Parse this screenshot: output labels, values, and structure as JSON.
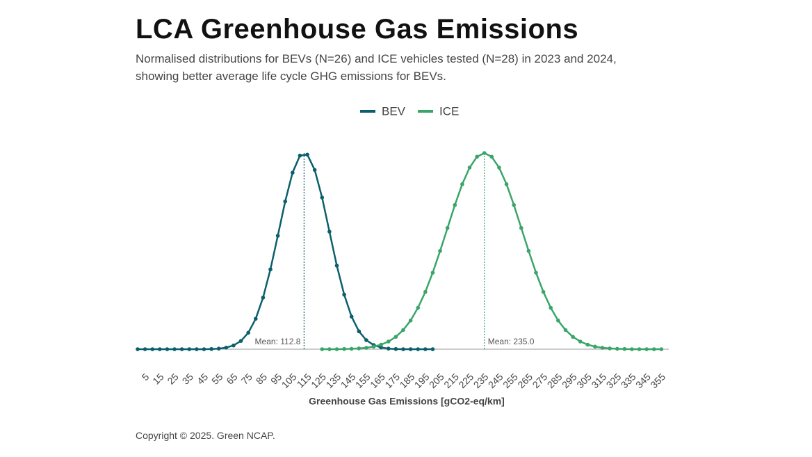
{
  "chart_data": {
    "type": "line",
    "title": "LCA Greenhouse Gas Emissions",
    "subtitle": "Normalised distributions for BEVs (N=26) and ICE vehicles tested (N=28) in 2023 and 2024, showing better average life cycle GHG emissions for BEVs.",
    "x_label": "Greenhouse Gas Emissions [gCO2-eq/km]",
    "footer": "Copyright © 2025. Green NCAP.",
    "x": [
      0,
      5,
      10,
      15,
      20,
      25,
      30,
      35,
      40,
      45,
      50,
      55,
      60,
      65,
      70,
      75,
      80,
      85,
      90,
      95,
      100,
      105,
      110,
      115,
      120,
      125,
      130,
      135,
      140,
      145,
      150,
      155,
      160,
      165,
      170,
      175,
      180,
      185,
      190,
      195,
      200,
      205,
      210,
      215,
      220,
      225,
      230,
      235,
      240,
      245,
      250,
      255,
      260,
      265,
      270,
      275,
      280,
      285,
      290,
      295,
      300,
      305,
      310,
      315,
      320,
      325,
      330,
      335,
      340,
      345,
      350,
      355
    ],
    "series": [
      {
        "name": "BEV",
        "color": "#0b5f6b",
        "values": [
          0,
          0,
          0,
          0,
          0,
          0,
          0,
          0,
          0,
          0,
          0.001,
          0.003,
          0.008,
          0.019,
          0.042,
          0.084,
          0.155,
          0.263,
          0.407,
          0.578,
          0.753,
          0.9,
          0.987,
          0.992,
          0.914,
          0.773,
          0.599,
          0.426,
          0.278,
          0.166,
          0.091,
          0.046,
          0.021,
          0.009,
          0.003,
          0.001,
          0,
          0,
          0,
          0,
          0,
          null,
          null,
          null,
          null,
          null,
          null,
          null,
          null,
          null,
          null,
          null,
          null,
          null,
          null,
          null,
          null,
          null,
          null,
          null,
          null,
          null,
          null,
          null,
          null,
          null,
          null,
          null,
          null,
          null,
          null,
          null
        ]
      },
      {
        "name": "ICE",
        "color": "#3aa56a",
        "values": [
          null,
          null,
          null,
          null,
          null,
          null,
          null,
          null,
          null,
          null,
          null,
          null,
          null,
          null,
          null,
          null,
          null,
          null,
          null,
          null,
          null,
          null,
          null,
          null,
          null,
          0,
          0,
          0,
          0.001,
          0.002,
          0.004,
          0.007,
          0.013,
          0.023,
          0.039,
          0.063,
          0.098,
          0.146,
          0.211,
          0.292,
          0.39,
          0.501,
          0.618,
          0.735,
          0.841,
          0.926,
          0.981,
          1,
          0.981,
          0.926,
          0.841,
          0.735,
          0.618,
          0.501,
          0.39,
          0.292,
          0.211,
          0.146,
          0.098,
          0.063,
          0.039,
          0.023,
          0.013,
          0.007,
          0.004,
          0.002,
          0.001,
          0,
          0,
          0,
          0,
          0
        ]
      }
    ],
    "annotations": [
      {
        "x": 112.8,
        "text": "Mean: 112.8",
        "color": "#0b5f6b"
      },
      {
        "x": 235.0,
        "text": "Mean: 235.0",
        "color": "#3aa56a"
      }
    ],
    "xlim": [
      0,
      360
    ],
    "ylim": [
      0,
      1
    ],
    "xticks": [
      5,
      15,
      25,
      35,
      45,
      55,
      65,
      75,
      85,
      95,
      105,
      115,
      125,
      135,
      145,
      155,
      165,
      175,
      185,
      195,
      205,
      215,
      225,
      235,
      245,
      255,
      265,
      275,
      285,
      295,
      305,
      315,
      325,
      335,
      345,
      355
    ],
    "legend": "top"
  }
}
